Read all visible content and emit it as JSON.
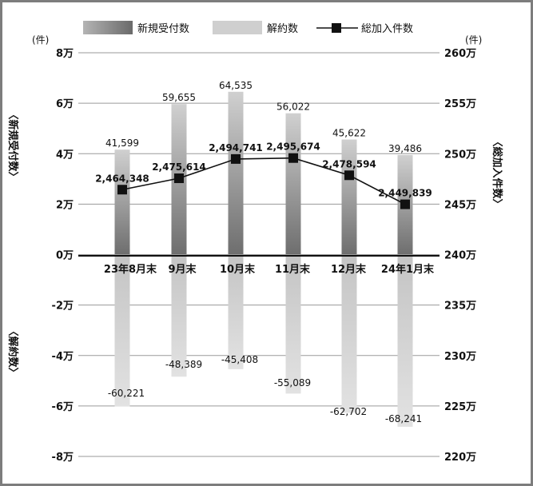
{
  "chart_data": {
    "type": "bar+line",
    "categories": [
      "23年8月末",
      "9月末",
      "10月末",
      "11月末",
      "12月末",
      "24年1月末"
    ],
    "series": [
      {
        "name": "新規受付数",
        "type": "bar",
        "axis": "left",
        "values": [
          41599,
          59655,
          64535,
          56022,
          45622,
          39486
        ],
        "labels": [
          "41,599",
          "59,655",
          "64,535",
          "56,022",
          "45,622",
          "39,486"
        ]
      },
      {
        "name": "解約数",
        "type": "bar",
        "axis": "left",
        "values": [
          -60221,
          -48389,
          -45408,
          -55089,
          -62702,
          -68241
        ],
        "labels": [
          "-60,221",
          "-48,389",
          "-45,408",
          "-55,089",
          "-62,702",
          "-68,241"
        ]
      },
      {
        "name": "総加入件数",
        "type": "line",
        "axis": "right",
        "values": [
          2464348,
          2475614,
          2494741,
          2495674,
          2478594,
          2449839
        ],
        "labels": [
          "2,464,348",
          "2,475,614",
          "2,494,741",
          "2,495,674",
          "2,478,594",
          "2,449,839"
        ]
      }
    ],
    "left_axis": {
      "unit": "(件)",
      "range": [
        -80000,
        80000
      ],
      "ticks": [
        "8万",
        "6万",
        "4万",
        "2万",
        "0万",
        "-2万",
        "-4万",
        "-6万",
        "-8万"
      ]
    },
    "right_axis": {
      "unit": "(件)",
      "range": [
        2200000,
        2600000
      ],
      "ticks": [
        "260万",
        "255万",
        "250万",
        "245万",
        "240万",
        "235万",
        "230万",
        "225万",
        "220万"
      ]
    },
    "left_titles": {
      "upper": "〈新規受付数〉",
      "lower": "〈解約数〉"
    },
    "right_title": "〈総加入件数〉",
    "grid": "horizontal",
    "legend_position": "top",
    "colors": {
      "receipts": "#808080",
      "cancellations": "#c8c8c8",
      "total_line": "#1a1a1a",
      "frame": "#7d7d7d"
    }
  }
}
